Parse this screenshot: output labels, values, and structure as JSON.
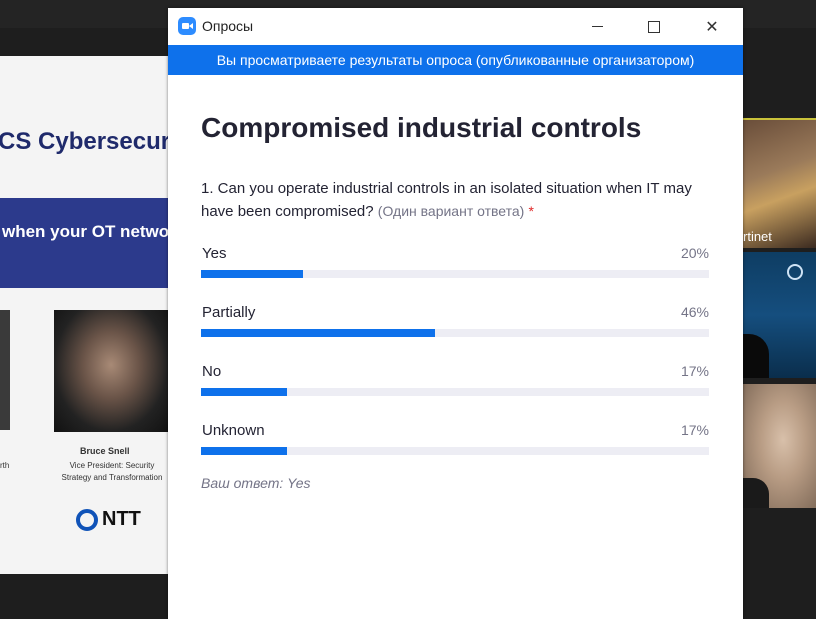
{
  "background": {
    "slide": {
      "title_fragment": "CS Cybersecurity I",
      "band_text": "when your OT network",
      "speaker_name": "Bruce Snell",
      "speaker_role": "Vice President: Security Strategy and Transformation",
      "left_fragment": "rth",
      "logo_text": "NTT"
    },
    "participant_label": "rtinet"
  },
  "window": {
    "title": "Опросы",
    "icon": "zoom-app-icon",
    "controls": {
      "minimize": "minimize-icon",
      "maximize": "maximize-icon",
      "close": "✕"
    }
  },
  "banner": "Вы просматриваете результаты опроса (опубликованные организатором)",
  "poll": {
    "title": "Compromised industrial controls",
    "question": "1. Can you operate industrial controls in an isolated situation when IT may have been compromised?",
    "question_hint": "(Один вариант ответа)",
    "required_mark": "*",
    "options": [
      {
        "label": "Yes",
        "percent_text": "20%",
        "percent": 20
      },
      {
        "label": "Partially",
        "percent_text": "46%",
        "percent": 46
      },
      {
        "label": "No",
        "percent_text": "17%",
        "percent": 17
      },
      {
        "label": "Unknown",
        "percent_text": "17%",
        "percent": 17
      }
    ],
    "your_answer": "Ваш ответ: Yes"
  },
  "colors": {
    "accent": "#0e71eb",
    "track": "#ededf4",
    "text": "#232333",
    "muted": "#747487",
    "required": "#e02828"
  }
}
